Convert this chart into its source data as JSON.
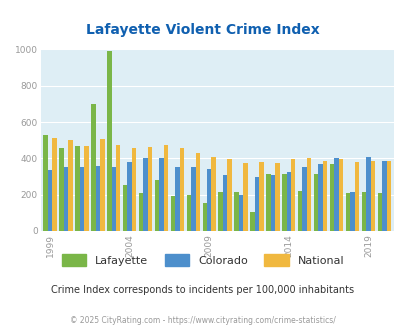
{
  "title": "Lafayette Violent Crime Index",
  "years": [
    1999,
    2000,
    2001,
    2002,
    2003,
    2004,
    2005,
    2006,
    2007,
    2008,
    2009,
    2010,
    2011,
    2012,
    2013,
    2014,
    2015,
    2016,
    2017,
    2018,
    2019,
    2020
  ],
  "lafayette": [
    530,
    460,
    470,
    700,
    990,
    255,
    210,
    280,
    195,
    200,
    155,
    215,
    215,
    105,
    315,
    315,
    220,
    315,
    370,
    210,
    215,
    210
  ],
  "colorado": [
    335,
    350,
    355,
    360,
    355,
    380,
    400,
    400,
    355,
    350,
    340,
    310,
    200,
    295,
    310,
    325,
    350,
    370,
    400,
    215,
    405,
    385
  ],
  "national": [
    510,
    500,
    470,
    505,
    475,
    460,
    465,
    475,
    460,
    430,
    405,
    395,
    375,
    380,
    375,
    395,
    400,
    385,
    395,
    380,
    385,
    385
  ],
  "lafayette_color": "#7ab648",
  "colorado_color": "#4d8fcc",
  "national_color": "#f0b83f",
  "plot_bg": "#deeef5",
  "title_color": "#1060b0",
  "tick_color": "#999999",
  "ylim": [
    0,
    1000
  ],
  "yticks": [
    0,
    200,
    400,
    600,
    800,
    1000
  ],
  "shown_years": [
    1999,
    2004,
    2009,
    2014,
    2019
  ],
  "subtitle": "Crime Index corresponds to incidents per 100,000 inhabitants",
  "footer": "© 2025 CityRating.com - https://www.cityrating.com/crime-statistics/",
  "legend_labels": [
    "Lafayette",
    "Colorado",
    "National"
  ],
  "legend_colors": [
    "#7ab648",
    "#4d8fcc",
    "#f0b83f"
  ],
  "bar_width": 0.28
}
